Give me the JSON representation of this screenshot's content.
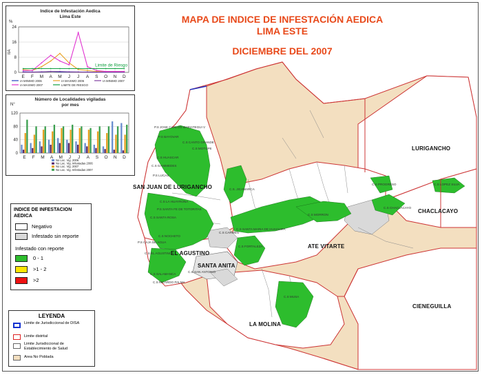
{
  "map_title": {
    "line1": "MAPA DE INDICE DE INFESTACIÓN AEDICA",
    "line2": "LIMA ESTE",
    "date": "DICIEMBRE DEL 2007"
  },
  "districts": {
    "lurigancho": "LURIGANCHO",
    "sjl": "SAN JUAN DE LURIGANCHO",
    "chaclacayo": "CHACLACAYO",
    "ate": "ATE VITARTE",
    "agustino": "EL AGUSTINO",
    "santa_anita": "SANTA ANITA",
    "la_molina": "LA MOLINA",
    "cieneguilla": "CIENEGUILLA"
  },
  "facility_labels": {
    "jicamarca": "C.S. JICAMARCA",
    "progreso": "C.S PROGRESO",
    "chaclacayo": "C.S CHACLACAYO",
    "lopez_silva": "C.S LOPEZ SILVA",
    "morron": "C.S MORRON",
    "huachipa": "C.S SANTA MARIA DE HUACHIPA",
    "fortaleza": "C.S FORTALEZA",
    "san_antonio": "C.S SAN ANTONIO",
    "carmen": "C.S CARMEN",
    "salamanca": "C.S SALAMANCA",
    "musa": "C.S MUSA",
    "ricardo_palma": "C.S RICARDO PALMA",
    "lucas": "P.S LUCAS",
    "canto_grande": "C.S CANTO GRANDE",
    "motupe": "C.S MOTUPE",
    "mariategui": "P.S JOSE CARLOS MARIATEGUI V",
    "bayovar": "P.S BAYOVAR",
    "huascar": "C.S HUASCAR",
    "ganimedes": "C.S GANIMEDES",
    "la_huayrona": "C.S LA HUAYRONA",
    "tototitas": "P.S SANTA FE DE TOTORITAS",
    "santa_rosa": "C.S SANTA ROSA",
    "caja_de_agua": "P.S CAJA DE AGUA",
    "agustino_cs": "C.S EL AGUSTINO",
    "nocheto": "C.S NOCHETO"
  },
  "inset_chart_title": "Indice de Infestación Aedica\nLima Este",
  "inset_chart_risk_label": "Limite de Riesgo",
  "bar_chart_title": "Número de Localidades vigiladas\npor mes",
  "legend": {
    "title": "INDICE DE INFESTACION AEDICA",
    "negativo": "Negativo",
    "sin_reporte": "Infestado sin reporte",
    "con_reporte": "Infestado con reporte",
    "r1": "0 - 1",
    "r2": ">1 - 2",
    "r3": ">2",
    "colors": {
      "negativo": "#ffffff",
      "sin_reporte": "#d9d9d9",
      "r1": "#2dbd2d",
      "r2": "#ffe600",
      "r3": "#ee1111"
    }
  },
  "leyenda": {
    "title": "LEYENDA",
    "l1": "Limite de Jurisdiccional de DISA",
    "l2": "Limite distrital",
    "l3": "Limite Jurisdiccional de Establecimiento de Salud",
    "l4": "Area No Poblada"
  },
  "chart_data": [
    {
      "type": "line",
      "title": "Indice de Infestación Aedica\nLima Este",
      "ylabel": "IIA",
      "categories": [
        "E",
        "F",
        "M",
        "A",
        "M",
        "J",
        "J",
        "A",
        "S",
        "O",
        "N",
        "D"
      ],
      "ylim": [
        0,
        24
      ],
      "yticks": [
        0,
        8,
        16,
        24
      ],
      "annotation": "Limite de Riesgo",
      "series": [
        {
          "name": "IA MINIMO 2006",
          "color": "#1f3fbf",
          "values": [
            0.3,
            0.2,
            0.2,
            0.5,
            0.3,
            0.2,
            0.2,
            0.2,
            0.1,
            0.1,
            0.1,
            0.1
          ]
        },
        {
          "name": "IA MAXIMO 2006",
          "color": "#e8a020",
          "values": [
            1.5,
            1,
            3,
            6,
            10,
            5,
            1.5,
            1,
            0.5,
            0.5,
            0.5,
            0.5
          ]
        },
        {
          "name": "IA MINIMO 2007",
          "color": "#8040a0",
          "values": [
            0.1,
            0.1,
            0.3,
            0.5,
            0.5,
            0.3,
            0.2,
            0.1,
            0.1,
            0.1,
            0.1,
            0.1
          ]
        },
        {
          "name": "IA MAXIMO 2007",
          "color": "#e030d0",
          "values": [
            1,
            1,
            5,
            9,
            6,
            4,
            21,
            3,
            1,
            0.5,
            0.5,
            0.5
          ]
        },
        {
          "name": "LIMITE DE RIESGO",
          "color": "#10a040",
          "values": [
            2,
            2,
            2,
            2,
            2,
            2,
            2,
            2,
            2,
            2,
            2,
            2
          ]
        }
      ]
    },
    {
      "type": "bar",
      "title": "Número de Localidades vigiladas\npor mes",
      "ylabel": "N°",
      "categories": [
        "E",
        "F",
        "M",
        "A",
        "M",
        "J",
        "J",
        "A",
        "S",
        "O",
        "N",
        "D"
      ],
      "ylim": [
        0,
        120
      ],
      "yticks": [
        0,
        40,
        80,
        120
      ],
      "series": [
        {
          "name": "No Loc. Vig. 2006",
          "color": "#6b8fd0",
          "values": [
            25,
            30,
            35,
            40,
            45,
            40,
            35,
            30,
            25,
            20,
            95,
            90
          ]
        },
        {
          "name": "No Loc. Vig. Infestadas 2006",
          "color": "#5a2a6a",
          "values": [
            10,
            15,
            20,
            25,
            30,
            30,
            25,
            20,
            15,
            12,
            10,
            8
          ]
        },
        {
          "name": "No Loc. Vig. 2007",
          "color": "#e8a020",
          "values": [
            60,
            55,
            70,
            65,
            75,
            70,
            75,
            70,
            65,
            60,
            55,
            55
          ]
        },
        {
          "name": "No Loc. Vig. Infestadas 2007",
          "color": "#3ca050",
          "values": [
            100,
            80,
            80,
            85,
            80,
            85,
            80,
            75,
            80,
            80,
            80,
            85
          ]
        }
      ]
    }
  ]
}
